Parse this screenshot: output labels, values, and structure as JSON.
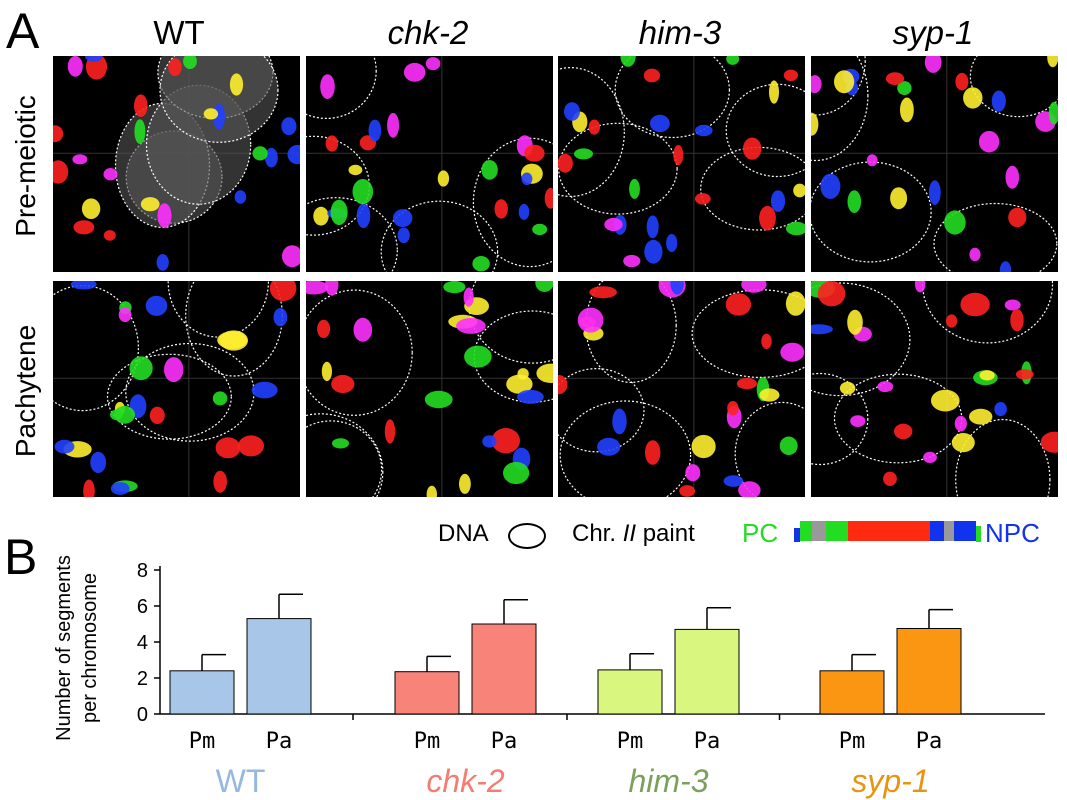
{
  "panel_a": {
    "letter": "A",
    "columns": [
      {
        "title": "WT",
        "italic": false
      },
      {
        "title": "chk-2",
        "italic": true
      },
      {
        "title": "him-3",
        "italic": true
      },
      {
        "title": "syp-1",
        "italic": true
      }
    ],
    "rows": [
      "Pre-meiotic",
      "Pachytene"
    ]
  },
  "panel_b": {
    "letter": "B"
  },
  "legend": {
    "dna_label": "DNA",
    "chr_prefix": "Chr.",
    "chr_number": "II",
    "chr_suffix": "paint",
    "pc_label": "PC",
    "npc_label": "NPC",
    "colors": {
      "pc": "#22dd22",
      "npc": "#1133ee",
      "middle": "#ff2a10",
      "gray": "#999999"
    }
  },
  "chart_data": {
    "type": "bar",
    "ylabel_line1": "Number of segments",
    "ylabel_line2": "per chromosome",
    "ylim": [
      0,
      8
    ],
    "yticks": [
      0,
      2,
      4,
      6,
      8
    ],
    "groups": [
      {
        "name": "WT",
        "italic": false,
        "color": "#a7c6e8",
        "label_color": "#94b8e0",
        "bars": [
          {
            "label": "Pm",
            "value": 2.4,
            "error": 0.9
          },
          {
            "label": "Pa",
            "value": 5.3,
            "error": 1.35
          }
        ]
      },
      {
        "name": "chk-2",
        "italic": true,
        "color": "#f88378",
        "label_color": "#f47c72",
        "bars": [
          {
            "label": "Pm",
            "value": 2.35,
            "error": 0.85
          },
          {
            "label": "Pa",
            "value": 5.0,
            "error": 1.35
          }
        ]
      },
      {
        "name": "him-3",
        "italic": true,
        "color": "#d9f77f",
        "label_color": "#7aa05a",
        "bars": [
          {
            "label": "Pm",
            "value": 2.45,
            "error": 0.9
          },
          {
            "label": "Pa",
            "value": 4.7,
            "error": 1.2
          }
        ]
      },
      {
        "name": "syp-1",
        "italic": true,
        "color": "#fb9612",
        "label_color": "#e9930e",
        "bars": [
          {
            "label": "Pm",
            "value": 2.4,
            "error": 0.9
          },
          {
            "label": "Pa",
            "value": 4.75,
            "error": 1.05
          }
        ]
      }
    ]
  }
}
